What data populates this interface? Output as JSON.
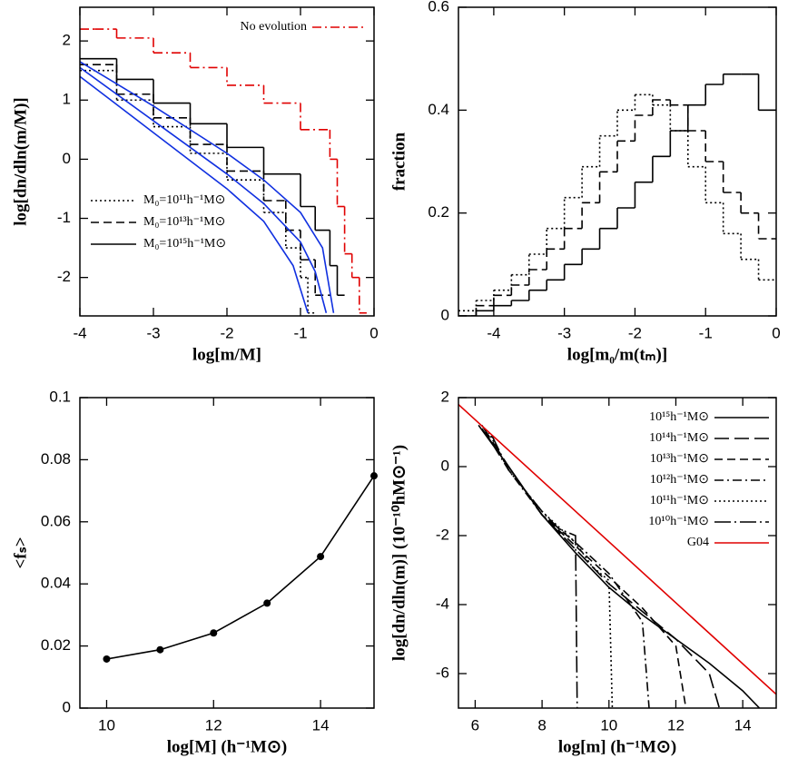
{
  "chart_data": [
    {
      "type": "line",
      "xlabel": "log[m/M]",
      "ylabel": "log[dn/dln(m/M)]",
      "xlim": [
        -4,
        0
      ],
      "ylim": [
        -2.65,
        2.57
      ],
      "xticks": [
        -4,
        -3,
        -2,
        -1,
        0
      ],
      "yticks": [
        -2,
        -1,
        0,
        1,
        2
      ],
      "legend": "lower left",
      "series": [
        {
          "name": "No evolution",
          "color": "#e00000",
          "style": "dashdot",
          "step": true,
          "legend": "upper right",
          "x": [
            -4,
            -3.8,
            -3.5,
            -3,
            -2.5,
            -2,
            -1.5,
            -1,
            -0.6,
            -0.5,
            -0.4,
            -0.3,
            -0.2
          ],
          "values": [
            2.2,
            2.2,
            2.05,
            1.8,
            1.55,
            1.25,
            0.95,
            0.5,
            0,
            -0.8,
            -1.6,
            -2,
            -2.6
          ]
        },
        {
          "name": "M₀=10¹¹h⁻¹M⊙",
          "color": "#000000",
          "style": "dotted",
          "step": true,
          "x": [
            -4,
            -3.5,
            -3,
            -2.5,
            -2,
            -1.5,
            -1.2,
            -1,
            -0.9
          ],
          "values": [
            1.5,
            1,
            0.55,
            0.1,
            -0.35,
            -0.9,
            -1.5,
            -2,
            -2.6
          ]
        },
        {
          "name": "M₀=10¹³h⁻¹M⊙",
          "color": "#000000",
          "style": "dashed",
          "step": true,
          "x": [
            -4,
            -3.5,
            -3,
            -2.5,
            -2,
            -1.5,
            -1.2,
            -1,
            -0.8
          ],
          "values": [
            1.6,
            1.1,
            0.7,
            0.25,
            -0.2,
            -0.7,
            -1.2,
            -1.7,
            -2.3
          ]
        },
        {
          "name": "M₀=10¹⁵h⁻¹M⊙",
          "color": "#000000",
          "style": "solid",
          "step": true,
          "x": [
            -4,
            -3.5,
            -3,
            -2.5,
            -2,
            -1.5,
            -1,
            -0.8,
            -0.6,
            -0.5
          ],
          "values": [
            1.7,
            1.35,
            0.95,
            0.6,
            0.2,
            -0.25,
            -0.8,
            -1.2,
            -1.8,
            -2.3
          ]
        },
        {
          "color": "#1030e0",
          "style": "solid",
          "x": [
            -4,
            -3,
            -2,
            -1.5,
            -1,
            -0.7,
            -0.55
          ],
          "values": [
            1.65,
            0.9,
            0.1,
            -0.35,
            -0.9,
            -1.5,
            -2.6
          ]
        },
        {
          "color": "#1030e0",
          "style": "solid",
          "x": [
            -4,
            -3,
            -2,
            -1.5,
            -1,
            -0.8,
            -0.65
          ],
          "values": [
            1.55,
            0.65,
            -0.25,
            -0.75,
            -1.4,
            -1.9,
            -2.6
          ]
        },
        {
          "color": "#1030e0",
          "style": "solid",
          "x": [
            -4,
            -3,
            -2,
            -1.5,
            -1.1,
            -0.9
          ],
          "values": [
            1.4,
            0.45,
            -0.5,
            -1.05,
            -1.8,
            -2.6
          ]
        }
      ]
    },
    {
      "type": "step",
      "xlabel": "log[m₀/m(tₘ)]",
      "ylabel": "fraction",
      "xlim": [
        -4.5,
        0
      ],
      "ylim": [
        0,
        0.6
      ],
      "xticks": [
        -4,
        -3,
        -2,
        -1,
        0
      ],
      "yticks": [
        0,
        0.2,
        0.4,
        0.6
      ],
      "series": [
        {
          "color": "#000000",
          "style": "solid",
          "x": [
            -4.5,
            -4.25,
            -4,
            -3.75,
            -3.5,
            -3.25,
            -3,
            -2.75,
            -2.5,
            -2.25,
            -2,
            -1.75,
            -1.5,
            -1.25,
            -1,
            -0.75,
            -0.5,
            -0.25
          ],
          "values": [
            0,
            0.01,
            0.02,
            0.03,
            0.05,
            0.07,
            0.1,
            0.13,
            0.17,
            0.21,
            0.26,
            0.31,
            0.36,
            0.41,
            0.45,
            0.47,
            0.47,
            0.4
          ]
        },
        {
          "color": "#000000",
          "style": "dashed",
          "x": [
            -4.5,
            -4.25,
            -4,
            -3.75,
            -3.5,
            -3.25,
            -3,
            -2.75,
            -2.5,
            -2.25,
            -2,
            -1.75,
            -1.5,
            -1.25,
            -1,
            -0.75,
            -0.5,
            -0.25
          ],
          "values": [
            0,
            0.02,
            0.04,
            0.06,
            0.09,
            0.13,
            0.17,
            0.22,
            0.28,
            0.34,
            0.39,
            0.42,
            0.41,
            0.36,
            0.3,
            0.24,
            0.2,
            0.15
          ]
        },
        {
          "color": "#000000",
          "style": "dotted",
          "x": [
            -4.5,
            -4.25,
            -4,
            -3.75,
            -3.5,
            -3.25,
            -3,
            -2.75,
            -2.5,
            -2.25,
            -2,
            -1.75,
            -1.5,
            -1.25,
            -1,
            -0.75,
            -0.5,
            -0.25
          ],
          "values": [
            0.01,
            0.03,
            0.05,
            0.08,
            0.12,
            0.17,
            0.23,
            0.29,
            0.35,
            0.4,
            0.43,
            0.41,
            0.36,
            0.29,
            0.22,
            0.16,
            0.11,
            0.07
          ]
        }
      ]
    },
    {
      "type": "line",
      "xlabel": "log[M] (h⁻¹M⊙)",
      "ylabel": "<fₛ>",
      "xlim": [
        9.5,
        15
      ],
      "ylim": [
        0,
        0.1
      ],
      "xticks": [
        10,
        12,
        14
      ],
      "yticks": [
        0,
        0.02,
        0.04,
        0.06,
        0.08,
        0.1
      ],
      "markers": true,
      "series": [
        {
          "color": "#000000",
          "style": "solid",
          "x": [
            10,
            11,
            12,
            13,
            14,
            15
          ],
          "values": [
            0.0158,
            0.0188,
            0.0242,
            0.0338,
            0.0488,
            0.0748
          ]
        }
      ]
    },
    {
      "type": "line",
      "xlabel": "log[m] (h⁻¹M⊙)",
      "ylabel": "log[dn/dln(m)] (10⁻¹⁰hM⊙⁻¹)",
      "xlim": [
        5.5,
        15
      ],
      "ylim": [
        -7,
        2
      ],
      "xticks": [
        6,
        8,
        10,
        12,
        14
      ],
      "yticks": [
        -6,
        -4,
        -2,
        0,
        2
      ],
      "legend": "upper right",
      "series": [
        {
          "name": "10¹⁵h⁻¹M⊙",
          "color": "#000000",
          "style": "solid",
          "x": [
            6.1,
            7,
            8,
            9,
            10,
            11,
            12,
            13,
            14,
            14.5
          ],
          "values": [
            1.2,
            0,
            -1.4,
            -2.5,
            -3.5,
            -4.3,
            -5,
            -5.7,
            -6.5,
            -7
          ]
        },
        {
          "name": "10¹⁴h⁻¹M⊙",
          "color": "#000000",
          "style": "longdash",
          "x": [
            6.2,
            7,
            8,
            9,
            10,
            11,
            12,
            13,
            13.3
          ],
          "values": [
            1.2,
            0,
            -1.4,
            -2.4,
            -3.4,
            -4.2,
            -5,
            -6,
            -7
          ]
        },
        {
          "name": "10¹³h⁻¹M⊙",
          "color": "#000000",
          "style": "dashed",
          "x": [
            6.2,
            7,
            8,
            9,
            10,
            11,
            12,
            12.3
          ],
          "values": [
            1.1,
            0,
            -1.4,
            -2.3,
            -3.2,
            -4.1,
            -5.2,
            -7
          ]
        },
        {
          "name": "10¹²h⁻¹M⊙",
          "color": "#000000",
          "style": "dashdot",
          "x": [
            6.3,
            7,
            8,
            9,
            10,
            11,
            11.2
          ],
          "values": [
            1,
            -0.1,
            -1.4,
            -2.2,
            -3.1,
            -4.5,
            -7
          ]
        },
        {
          "name": "10¹¹h⁻¹M⊙",
          "color": "#000000",
          "style": "dotted",
          "x": [
            6.4,
            7,
            8,
            9,
            9.5,
            10,
            10.1
          ],
          "values": [
            1,
            -0.1,
            -1.3,
            -2.2,
            -2.9,
            -3.3,
            -7
          ]
        },
        {
          "name": "10¹⁰h⁻¹M⊙",
          "color": "#000000",
          "style": "dashdotlong",
          "x": [
            6.5,
            7,
            8,
            8.5,
            9,
            9.05
          ],
          "values": [
            0.9,
            -0.1,
            -1.3,
            -1.8,
            -2,
            -7
          ]
        },
        {
          "name": "G04",
          "color": "#e00000",
          "style": "solid",
          "x": [
            5.5,
            15
          ],
          "values": [
            1.8,
            -6.6
          ]
        }
      ]
    }
  ]
}
